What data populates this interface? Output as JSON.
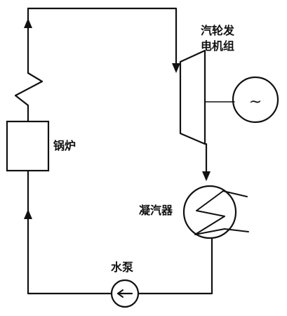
{
  "labels": {
    "turbine_line1": "汽轮发",
    "turbine_line2": "电机组",
    "boiler": "锅炉",
    "condenser": "凝汽器",
    "pump": "水泵",
    "generator_symbol": "~"
  },
  "colors": {
    "line": "#111111",
    "background": "#ffffff"
  }
}
